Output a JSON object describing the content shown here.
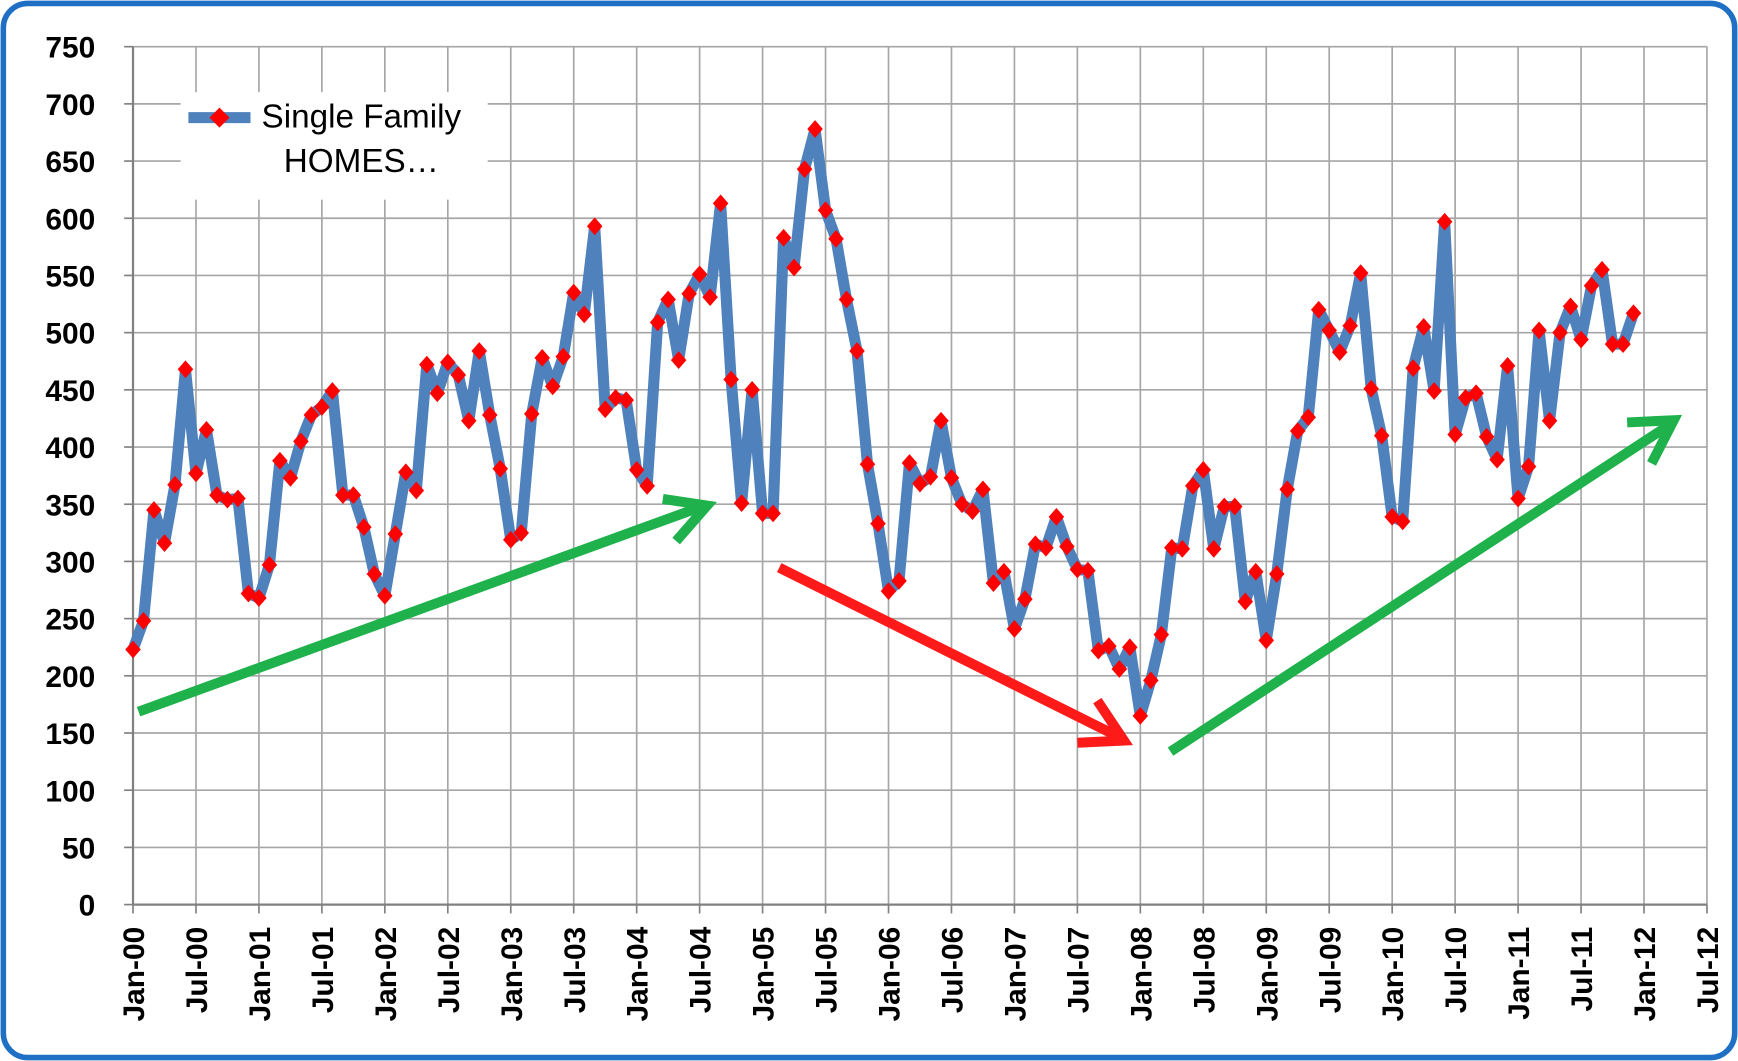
{
  "chart_data": {
    "type": "line",
    "x": [
      "2000-01",
      "2000-02",
      "2000-03",
      "2000-04",
      "2000-05",
      "2000-06",
      "2000-07",
      "2000-08",
      "2000-09",
      "2000-10",
      "2000-11",
      "2000-12",
      "2001-01",
      "2001-02",
      "2001-03",
      "2001-04",
      "2001-05",
      "2001-06",
      "2001-07",
      "2001-08",
      "2001-09",
      "2001-10",
      "2001-11",
      "2001-12",
      "2002-01",
      "2002-02",
      "2002-03",
      "2002-04",
      "2002-05",
      "2002-06",
      "2002-07",
      "2002-08",
      "2002-09",
      "2002-10",
      "2002-11",
      "2002-12",
      "2003-01",
      "2003-02",
      "2003-03",
      "2003-04",
      "2003-05",
      "2003-06",
      "2003-07",
      "2003-08",
      "2003-09",
      "2003-10",
      "2003-11",
      "2003-12",
      "2004-01",
      "2004-02",
      "2004-03",
      "2004-04",
      "2004-05",
      "2004-06",
      "2004-07",
      "2004-08",
      "2004-09",
      "2004-10",
      "2004-11",
      "2004-12",
      "2005-01",
      "2005-02",
      "2005-03",
      "2005-04",
      "2005-05",
      "2005-06",
      "2005-07",
      "2005-08",
      "2005-09",
      "2005-10",
      "2005-11",
      "2005-12",
      "2006-01",
      "2006-02",
      "2006-03",
      "2006-04",
      "2006-05",
      "2006-06",
      "2006-07",
      "2006-08",
      "2006-09",
      "2006-10",
      "2006-11",
      "2006-12",
      "2007-01",
      "2007-02",
      "2007-03",
      "2007-04",
      "2007-05",
      "2007-06",
      "2007-07",
      "2007-08",
      "2007-09",
      "2007-10",
      "2007-11",
      "2007-12",
      "2008-01",
      "2008-02",
      "2008-03",
      "2008-04",
      "2008-05",
      "2008-06",
      "2008-07",
      "2008-08",
      "2008-09",
      "2008-10",
      "2008-11",
      "2008-12",
      "2009-01",
      "2009-02",
      "2009-03",
      "2009-04",
      "2009-05",
      "2009-06",
      "2009-07",
      "2009-08",
      "2009-09",
      "2009-10",
      "2009-11",
      "2009-12",
      "2010-01",
      "2010-02",
      "2010-03",
      "2010-04",
      "2010-05",
      "2010-06",
      "2010-07",
      "2010-08",
      "2010-09",
      "2010-10",
      "2010-11",
      "2010-12",
      "2011-01",
      "2011-02",
      "2011-03",
      "2011-04",
      "2011-05",
      "2011-06",
      "2011-07",
      "2011-08",
      "2011-09",
      "2011-10",
      "2011-11",
      "2011-12"
    ],
    "series": [
      {
        "name": "Single Family HOMES…",
        "color": "#4f81bd",
        "marker_color": "#ff0000",
        "values": [
          223,
          248,
          345,
          316,
          367,
          468,
          377,
          415,
          358,
          354,
          355,
          272,
          268,
          297,
          388,
          373,
          405,
          428,
          435,
          449,
          358,
          358,
          330,
          289,
          270,
          324,
          378,
          362,
          472,
          447,
          474,
          463,
          423,
          484,
          428,
          381,
          319,
          325,
          429,
          478,
          453,
          479,
          535,
          516,
          593,
          433,
          443,
          441,
          380,
          366,
          509,
          529,
          476,
          534,
          551,
          531,
          613,
          459,
          351,
          450,
          342,
          342,
          583,
          557,
          643,
          678,
          607,
          582,
          529,
          484,
          385,
          333,
          274,
          283,
          386,
          368,
          374,
          423,
          373,
          350,
          344,
          363,
          281,
          291,
          241,
          267,
          315,
          312,
          339,
          313,
          293,
          292,
          222,
          226,
          206,
          225,
          165,
          196,
          236,
          312,
          311,
          366,
          380,
          311,
          348,
          348,
          265,
          291,
          231,
          289,
          363,
          414,
          426,
          520,
          502,
          483,
          506,
          552,
          451,
          410,
          339,
          335,
          469,
          505,
          449,
          597,
          411,
          443,
          447,
          409,
          389,
          471,
          355,
          383,
          502,
          423,
          500,
          523,
          494,
          541,
          555,
          490,
          490,
          517
        ]
      }
    ],
    "xlim": [
      "2000-01",
      "2012-07"
    ],
    "xticks": [
      {
        "value": "2000-01",
        "label": "Jan-00"
      },
      {
        "value": "2000-07",
        "label": "Jul-00"
      },
      {
        "value": "2001-01",
        "label": "Jan-01"
      },
      {
        "value": "2001-07",
        "label": "Jul-01"
      },
      {
        "value": "2002-01",
        "label": "Jan-02"
      },
      {
        "value": "2002-07",
        "label": "Jul-02"
      },
      {
        "value": "2003-01",
        "label": "Jan-03"
      },
      {
        "value": "2003-07",
        "label": "Jul-03"
      },
      {
        "value": "2004-01",
        "label": "Jan-04"
      },
      {
        "value": "2004-07",
        "label": "Jul-04"
      },
      {
        "value": "2005-01",
        "label": "Jan-05"
      },
      {
        "value": "2005-07",
        "label": "Jul-05"
      },
      {
        "value": "2006-01",
        "label": "Jan-06"
      },
      {
        "value": "2006-07",
        "label": "Jul-06"
      },
      {
        "value": "2007-01",
        "label": "Jan-07"
      },
      {
        "value": "2007-07",
        "label": "Jul-07"
      },
      {
        "value": "2008-01",
        "label": "Jan-08"
      },
      {
        "value": "2008-07",
        "label": "Jul-08"
      },
      {
        "value": "2009-01",
        "label": "Jan-09"
      },
      {
        "value": "2009-07",
        "label": "Jul-09"
      },
      {
        "value": "2010-01",
        "label": "Jan-10"
      },
      {
        "value": "2010-07",
        "label": "Jul-10"
      },
      {
        "value": "2011-01",
        "label": "Jan-11"
      },
      {
        "value": "2011-07",
        "label": "Jul-11"
      },
      {
        "value": "2012-01",
        "label": "Jan-12"
      },
      {
        "value": "2012-07",
        "label": "Jul-12"
      }
    ],
    "ylim": [
      0,
      750
    ],
    "yticks": [
      0,
      50,
      100,
      150,
      200,
      250,
      300,
      350,
      400,
      450,
      500,
      550,
      600,
      650,
      700,
      750
    ],
    "grid": true,
    "legend": "upper left"
  }
}
